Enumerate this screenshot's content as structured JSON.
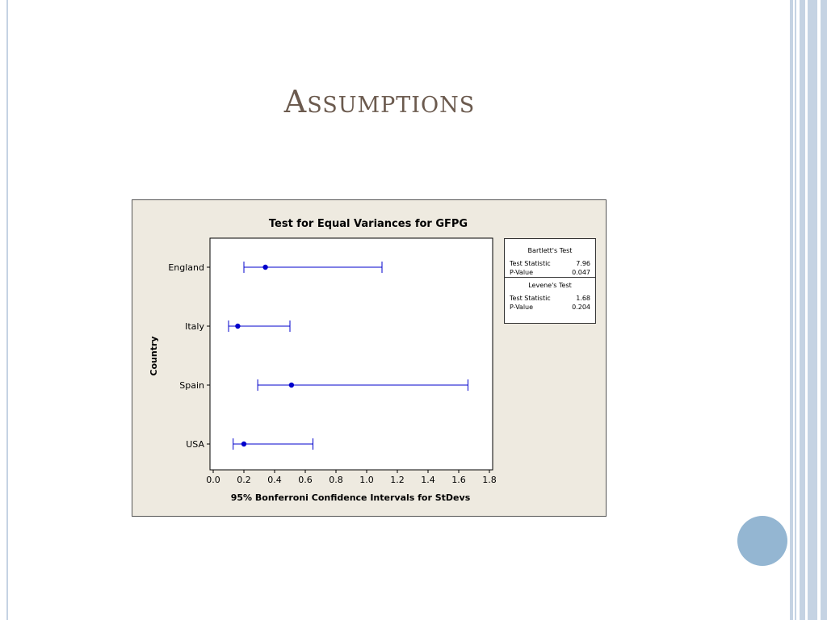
{
  "slide": {
    "title": "Assumptions"
  },
  "colors": {
    "title": "#6b5a4e",
    "chart_background": "#eeeae0",
    "interval": "#0000cc",
    "accent_circle": "#94b6d2"
  },
  "chart_data": {
    "type": "interval",
    "title": "Test for Equal Variances for GFPG",
    "xlabel": "95% Bonferroni Confidence Intervals for StDevs",
    "ylabel": "Country",
    "xlim": [
      0.0,
      1.8
    ],
    "xticks": [
      "0.0",
      "0.2",
      "0.4",
      "0.6",
      "0.8",
      "1.0",
      "1.2",
      "1.4",
      "1.6",
      "1.8"
    ],
    "grid": false,
    "legend_position": "right",
    "categories": [
      "England",
      "Italy",
      "Spain",
      "USA"
    ],
    "series": [
      {
        "category": "England",
        "lower": 0.2,
        "estimate": 0.34,
        "upper": 1.1
      },
      {
        "category": "Italy",
        "lower": 0.1,
        "estimate": 0.16,
        "upper": 0.5
      },
      {
        "category": "Spain",
        "lower": 0.29,
        "estimate": 0.51,
        "upper": 1.66
      },
      {
        "category": "USA",
        "lower": 0.13,
        "estimate": 0.2,
        "upper": 0.65
      }
    ],
    "tests": [
      {
        "name": "Bartlett's Test",
        "stat_label": "Test Statistic",
        "stat": "7.96",
        "p_label": "P-Value",
        "p": "0.047"
      },
      {
        "name": "Levene's Test",
        "stat_label": "Test Statistic",
        "stat": "1.68",
        "p_label": "P-Value",
        "p": "0.204"
      }
    ]
  }
}
